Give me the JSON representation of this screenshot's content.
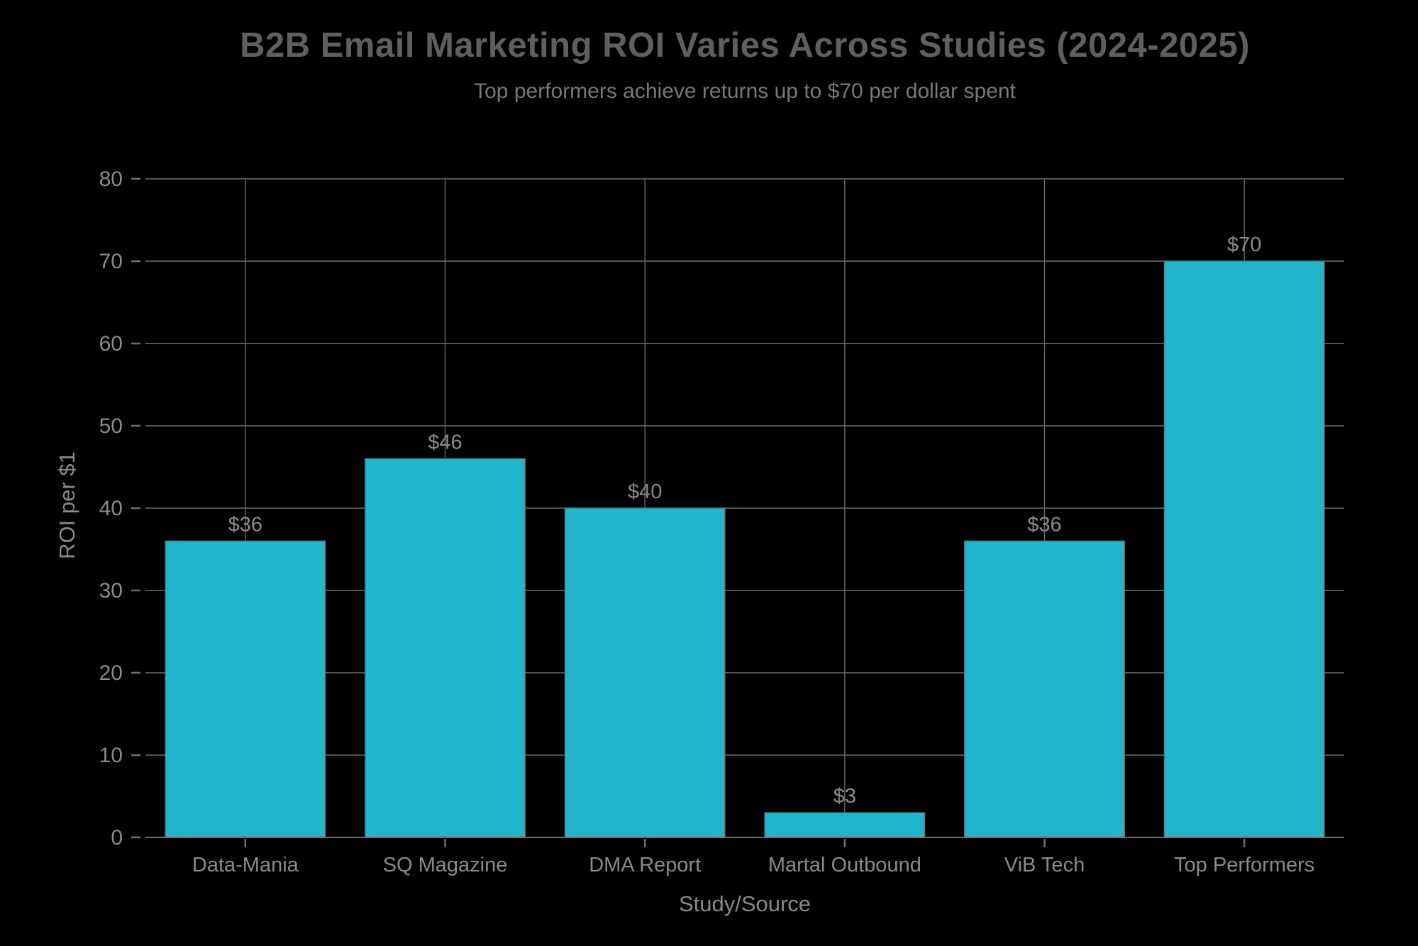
{
  "chart_data": {
    "type": "bar",
    "title": "B2B Email Marketing ROI Varies Across Studies (2024-2025)",
    "subtitle": "Top performers achieve returns up to $70 per dollar spent",
    "xlabel": "Study/Source",
    "ylabel": "ROI per $1",
    "categories": [
      "Data-Mania",
      "SQ Magazine",
      "DMA Report",
      "Martal Outbound",
      "ViB Tech",
      "Top Performers"
    ],
    "values": [
      36,
      46,
      40,
      3,
      36,
      70
    ],
    "value_labels": [
      "$36",
      "$46",
      "$40",
      "$3",
      "$36",
      "$70"
    ],
    "ylim": [
      0,
      80
    ],
    "ytick_step": 10,
    "ytick_labels": [
      "0",
      "10",
      "20",
      "30",
      "40",
      "50",
      "60",
      "70",
      "80"
    ],
    "grid": true,
    "legend": null,
    "colors": {
      "background": "#000000",
      "bar": "#22b6cc",
      "bar_edge": "#6f6f6f",
      "grid": "#6f6f6f",
      "tick_label": "#8a8a8a",
      "value_label": "#8a8a8a",
      "axis_label": "#8a8a8a",
      "title": "#5f5f5f",
      "subtitle": "#787878"
    }
  }
}
